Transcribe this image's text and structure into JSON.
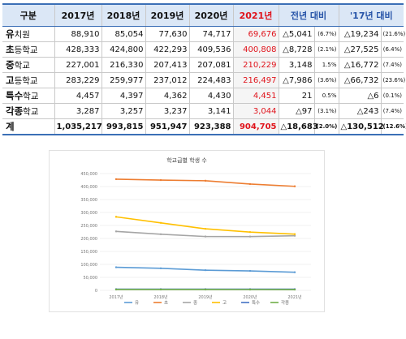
{
  "table": {
    "headers": [
      "구분",
      "2017년",
      "2018년",
      "2019년",
      "2020년",
      "2021년",
      "전년 대비",
      "'17년 대비"
    ],
    "rows": [
      {
        "lead": "유",
        "rest": "치원",
        "v": [
          "88,910",
          "85,054",
          "77,630",
          "74,717",
          "69,676"
        ],
        "d1": "△5,041",
        "p1": "(6.7%)",
        "d2": "△19,234",
        "p2": "(21.6%)"
      },
      {
        "lead": "초",
        "rest": "등학교",
        "v": [
          "428,333",
          "424,800",
          "422,293",
          "409,536",
          "400,808"
        ],
        "d1": "△8,728",
        "p1": "(2.1%)",
        "d2": "△27,525",
        "p2": "(6.4%)"
      },
      {
        "lead": "중",
        "rest": "학교",
        "v": [
          "227,001",
          "216,330",
          "207,413",
          "207,081",
          "210,229"
        ],
        "d1": "3,148",
        "p1": "1.5%",
        "d2": "△16,772",
        "p2": "(7.4%)"
      },
      {
        "lead": "고",
        "rest": "등학교",
        "v": [
          "283,229",
          "259,977",
          "237,012",
          "224,483",
          "216,497"
        ],
        "d1": "△7,986",
        "p1": "(3.6%)",
        "d2": "△66,732",
        "p2": "(23.6%)"
      },
      {
        "lead": "특수",
        "rest": "학교",
        "v": [
          "4,457",
          "4,397",
          "4,362",
          "4,430",
          "4,451"
        ],
        "d1": "21",
        "p1": "0.5%",
        "d2": "△6",
        "p2": "(0.1%)"
      },
      {
        "lead": "각종",
        "rest": "학교",
        "v": [
          "3,287",
          "3,257",
          "3,237",
          "3,141",
          "3,044"
        ],
        "d1": "△97",
        "p1": "(3.1%)",
        "d2": "△243",
        "p2": "(7.4%)"
      },
      {
        "lead": "계",
        "rest": "",
        "v": [
          "1,035,217",
          "993,815",
          "951,947",
          "923,388",
          "904,705"
        ],
        "d1": "△18,683",
        "p1": "(2.0%)",
        "d2": "△130,512",
        "p2": "(12.6%)"
      }
    ]
  },
  "chart_data": {
    "type": "line",
    "title": "학교급별 학생 수",
    "x": [
      "2017년",
      "2018년",
      "2019년",
      "2020년",
      "2021년"
    ],
    "ylim": [
      0,
      450000
    ],
    "yticks": [
      "0",
      "50,000",
      "100,000",
      "150,000",
      "200,000",
      "250,000",
      "300,000",
      "350,000",
      "400,000",
      "450,000"
    ],
    "grid": true,
    "legend_position": "bottom",
    "series": [
      {
        "name": "유",
        "color": "#5b9bd5",
        "values": [
          88910,
          85054,
          77630,
          74717,
          69676
        ]
      },
      {
        "name": "초",
        "color": "#ed7d31",
        "values": [
          428333,
          424800,
          422293,
          409536,
          400808
        ]
      },
      {
        "name": "중",
        "color": "#a5a5a5",
        "values": [
          227001,
          216330,
          207413,
          207081,
          210229
        ]
      },
      {
        "name": "고",
        "color": "#ffc000",
        "values": [
          283229,
          259977,
          237012,
          224483,
          216497
        ]
      },
      {
        "name": "특수",
        "color": "#4472c4",
        "values": [
          4457,
          4397,
          4362,
          4430,
          4451
        ]
      },
      {
        "name": "각종",
        "color": "#70ad47",
        "values": [
          3287,
          3257,
          3237,
          3141,
          3044
        ]
      }
    ]
  }
}
